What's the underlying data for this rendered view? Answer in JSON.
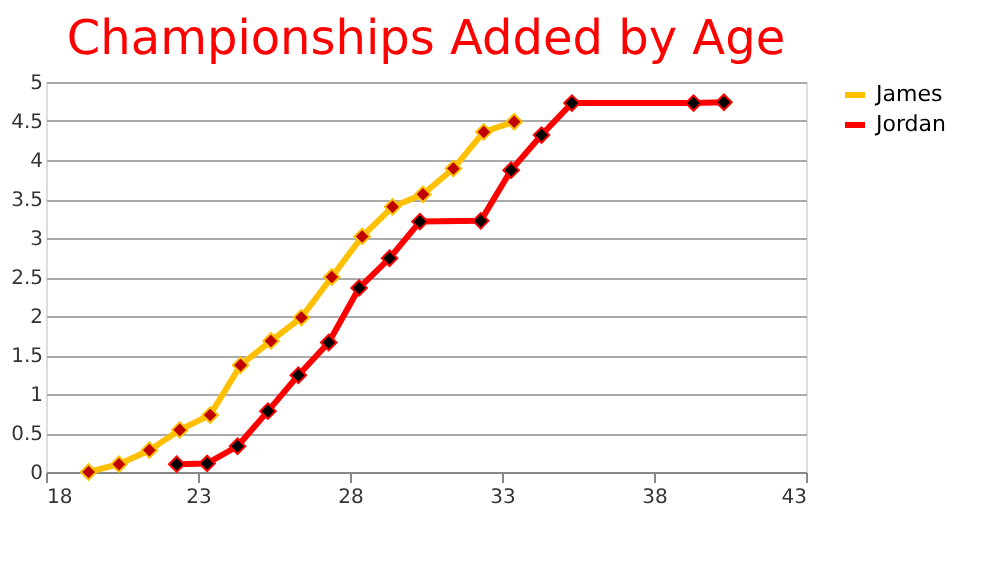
{
  "chart_data": {
    "type": "line",
    "title": "Championships Added by Age",
    "xlim": [
      18,
      43
    ],
    "xticks": [
      18,
      23,
      28,
      33,
      38,
      43
    ],
    "ylim": [
      0,
      5
    ],
    "yticks": [
      0,
      0.5,
      1,
      1.5,
      2,
      2.5,
      3,
      3.5,
      4,
      4.5,
      5
    ],
    "grid": "y",
    "legend": "right",
    "marker": "diamond",
    "line_style": "solid",
    "series": [
      {
        "name": "James",
        "color": "#ffc000",
        "x": [
          19.4,
          20.4,
          21.4,
          22.4,
          23.4,
          24.4,
          25.4,
          26.4,
          27.4,
          28.4,
          29.4,
          30.4,
          31.4,
          32.4,
          33.4
        ],
        "values": [
          0,
          0.1,
          0.28,
          0.54,
          0.73,
          1.37,
          1.68,
          1.98,
          2.5,
          3.02,
          3.4,
          3.56,
          3.89,
          4.36,
          4.49
        ]
      },
      {
        "name": "Jordan",
        "color": "#ff0000",
        "x": [
          22.3,
          23.3,
          24.3,
          25.3,
          26.3,
          27.3,
          28.3,
          29.3,
          30.3,
          32.3,
          33.3,
          34.3,
          35.3,
          39.3,
          40.3
        ],
        "values": [
          0.1,
          0.11,
          0.33,
          0.78,
          1.24,
          1.66,
          2.36,
          2.74,
          3.21,
          3.22,
          3.87,
          4.32,
          4.73,
          4.73,
          4.74
        ]
      }
    ]
  }
}
